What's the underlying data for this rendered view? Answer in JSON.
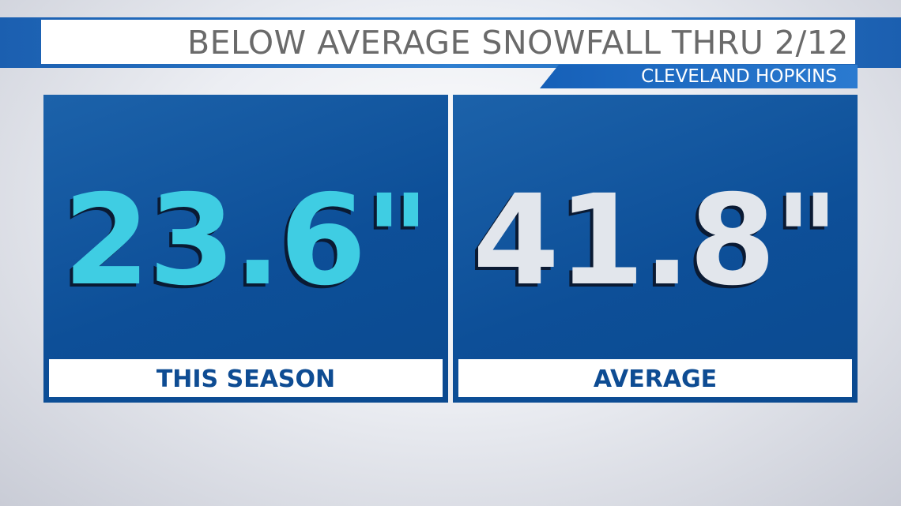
{
  "header": {
    "title": "BELOW AVERAGE SNOWFALL THRU 2/12",
    "subtitle": "CLEVELAND HOPKINS"
  },
  "panels": [
    {
      "value": "23.6\"",
      "label": "THIS SEASON"
    },
    {
      "value": "41.8\"",
      "label": "AVERAGE"
    }
  ]
}
